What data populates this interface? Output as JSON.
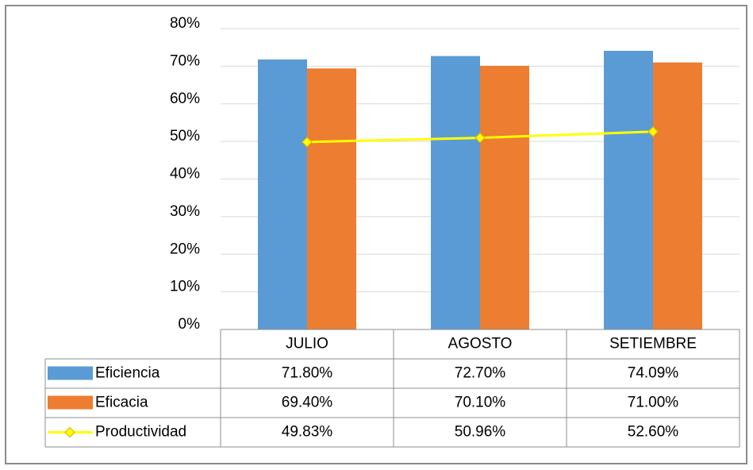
{
  "chart_data": {
    "type": "bar",
    "categories": [
      "JULIO",
      "AGOSTO",
      "SETIEMBRE"
    ],
    "series": [
      {
        "name": "Eficiencia",
        "type": "bar",
        "color": "#5b9bd5",
        "values": [
          71.8,
          72.7,
          74.09
        ],
        "value_labels": [
          "71.80%",
          "72.70%",
          "74.09%"
        ]
      },
      {
        "name": "Eficacia",
        "type": "bar",
        "color": "#ed7d31",
        "values": [
          69.4,
          70.1,
          71.0
        ],
        "value_labels": [
          "69.40%",
          "70.10%",
          "71.00%"
        ]
      },
      {
        "name": "Productividad",
        "type": "line",
        "color": "#ffff00",
        "marker_edge": "#e0b800",
        "values": [
          49.83,
          50.96,
          52.6
        ],
        "value_labels": [
          "49.83%",
          "50.96%",
          "52.60%"
        ]
      }
    ],
    "ylim": [
      0,
      80
    ],
    "yticks": [
      {
        "value": 0,
        "label": "0%"
      },
      {
        "value": 10,
        "label": "10%"
      },
      {
        "value": 20,
        "label": "20%"
      },
      {
        "value": 30,
        "label": "30%"
      },
      {
        "value": 40,
        "label": "40%"
      },
      {
        "value": 50,
        "label": "50%"
      },
      {
        "value": 60,
        "label": "60%"
      },
      {
        "value": 70,
        "label": "70%"
      },
      {
        "value": 80,
        "label": "80%"
      }
    ],
    "grid": true,
    "data_table": true
  }
}
